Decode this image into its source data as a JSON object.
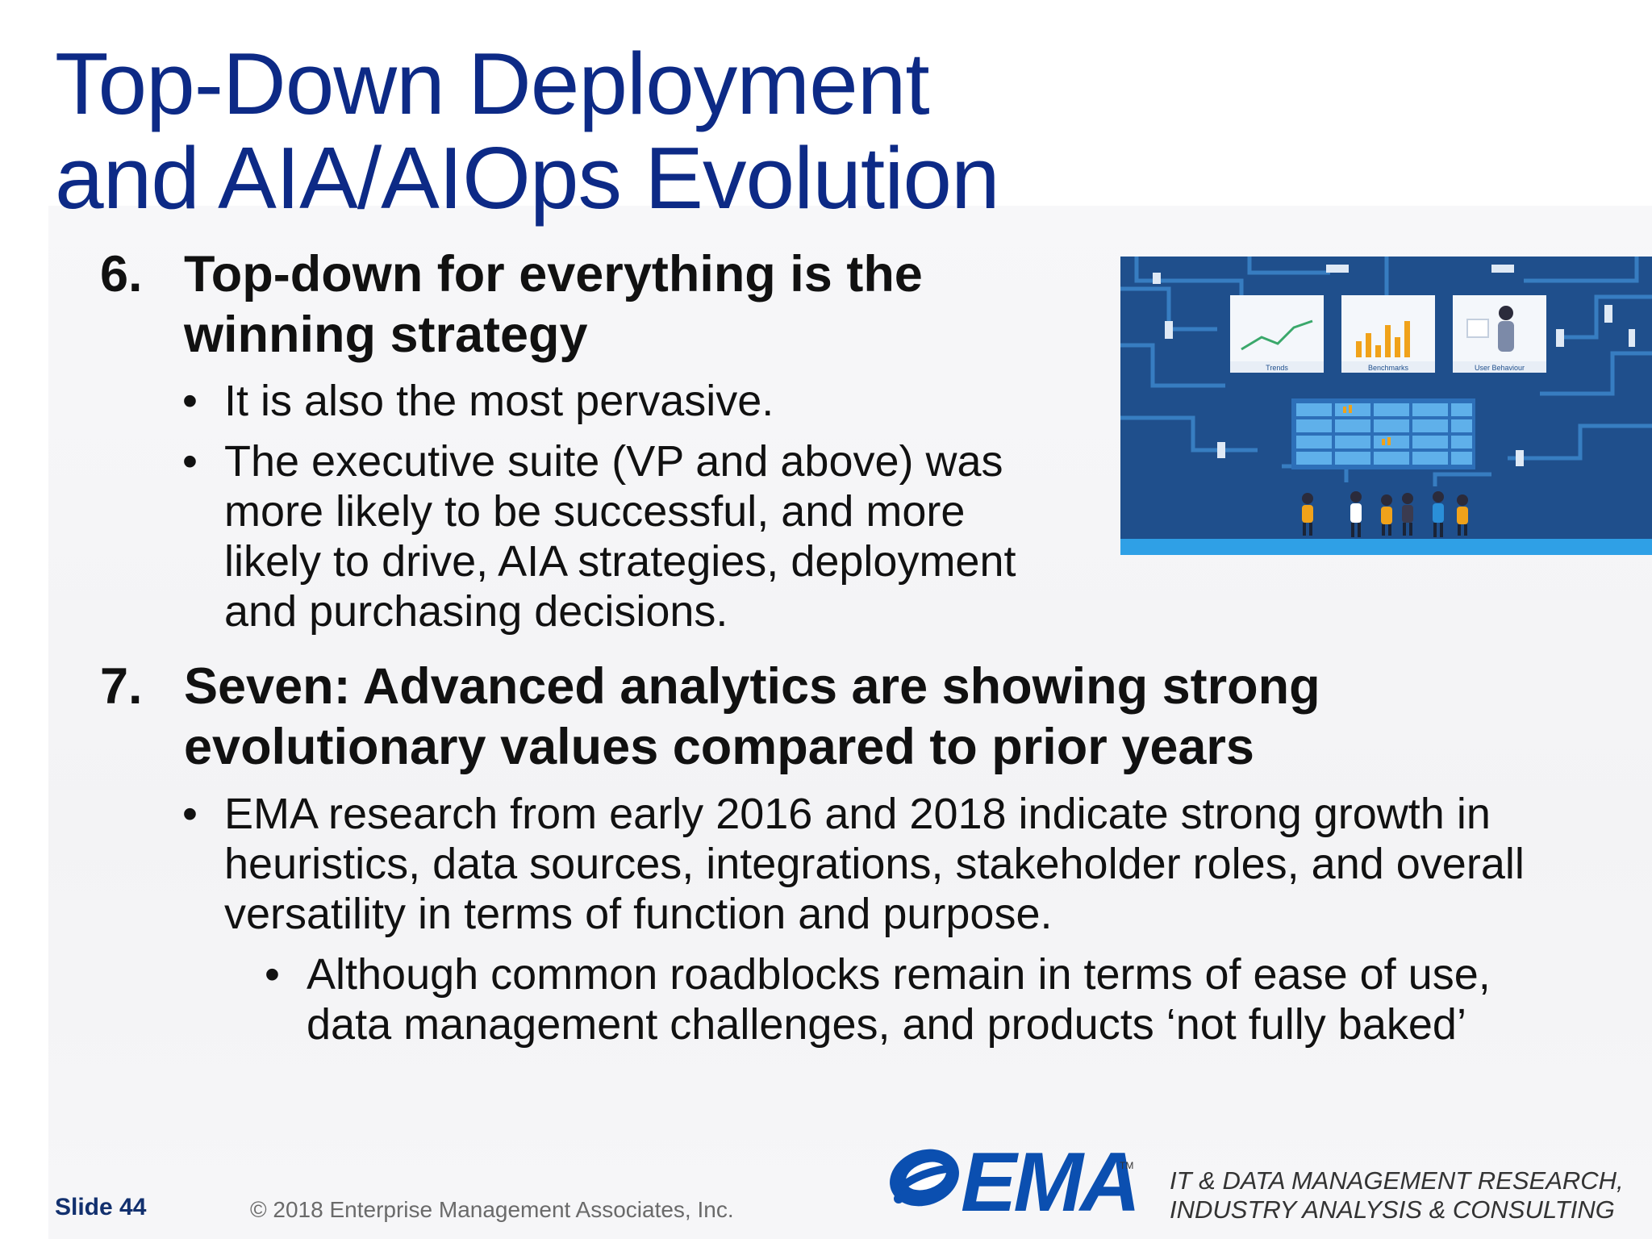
{
  "title": {
    "line1": "Top-Down Deployment",
    "line2": "and AIA/AIOps Evolution"
  },
  "section6": {
    "number": "6.",
    "heading_line1": "Top-down for everything is the",
    "heading_line2": "winning strategy",
    "bullets": [
      {
        "lines": [
          "It is also the most pervasive."
        ]
      },
      {
        "lines": [
          "The executive suite (VP and above) was",
          "more likely to be successful, and more",
          "likely to drive, AIA strategies, deployment",
          "and purchasing decisions."
        ]
      }
    ]
  },
  "section7": {
    "number": "7.",
    "heading_line1": "Seven: Advanced analytics are showing strong",
    "heading_line2": "evolutionary values compared to prior years",
    "bullet": {
      "lines": [
        "EMA research from early 2016 and 2018 indicate strong growth in",
        "heuristics, data sources, integrations, stakeholder roles, and overall",
        "versatility in terms of function and purpose."
      ]
    },
    "sub_bullet": {
      "lines": [
        "Although common roadblocks remain in terms of ease of use,",
        "data management challenges, and products ‘not fully baked’"
      ]
    }
  },
  "bullet_glyph": "•",
  "illustration": {
    "labels": [
      "Trends",
      "Benchmarks",
      "User Behaviour"
    ],
    "colors": {
      "background": "#1f4f8c",
      "circuit": "#3a83c7",
      "floor": "#2fa0e6"
    }
  },
  "footer": {
    "slide": "Slide 44",
    "copyright": "© 2018 Enterprise Management Associates, Inc.",
    "logo_text": "EMA",
    "tm": "TM",
    "tagline_line1": "IT & DATA MANAGEMENT RESEARCH,",
    "tagline_line2": "INDUSTRY ANALYSIS & CONSULTING"
  },
  "colors": {
    "title": "#0d2a86",
    "body": "#111111",
    "logo": "#0b4fb0"
  }
}
